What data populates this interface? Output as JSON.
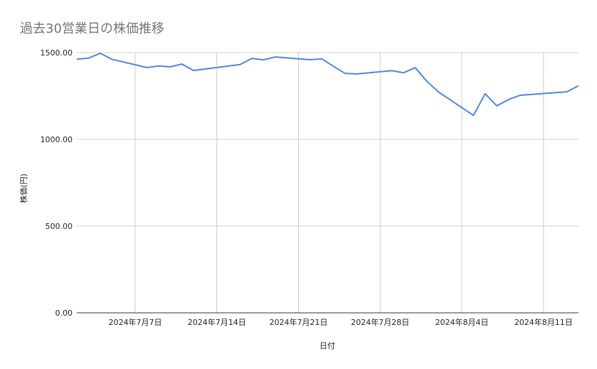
{
  "chart_data": {
    "type": "line",
    "title": "過去30営業日の株価推移",
    "xlabel": "日付",
    "ylabel": "株価(円)",
    "ylim": [
      0,
      1500
    ],
    "xlim": [
      "2024-07-02",
      "2024-08-14"
    ],
    "yticks": [
      0,
      500,
      1000,
      1500
    ],
    "ytick_labels": [
      "0.00",
      "500.00",
      "1000.00",
      "1500.00"
    ],
    "xticks": [
      {
        "date": "2024-07-07",
        "label": "2024年7月7日"
      },
      {
        "date": "2024-07-14",
        "label": "2024年7月14日"
      },
      {
        "date": "2024-07-21",
        "label": "2024年7月21日"
      },
      {
        "date": "2024-07-28",
        "label": "2024年7月28日"
      },
      {
        "date": "2024-08-04",
        "label": "2024年8月4日"
      },
      {
        "date": "2024-08-11",
        "label": "2024年8月11日"
      }
    ],
    "grid": true,
    "legend": "none",
    "color": "#4a86e8",
    "x": [
      "2024-07-02",
      "2024-07-03",
      "2024-07-04",
      "2024-07-05",
      "2024-07-08",
      "2024-07-09",
      "2024-07-10",
      "2024-07-11",
      "2024-07-12",
      "2024-07-16",
      "2024-07-17",
      "2024-07-18",
      "2024-07-19",
      "2024-07-22",
      "2024-07-23",
      "2024-07-24",
      "2024-07-25",
      "2024-07-26",
      "2024-07-29",
      "2024-07-30",
      "2024-07-31",
      "2024-08-01",
      "2024-08-02",
      "2024-08-05",
      "2024-08-06",
      "2024-08-07",
      "2024-08-08",
      "2024-08-09",
      "2024-08-13",
      "2024-08-14"
    ],
    "values": [
      1462,
      1468,
      1496,
      1462,
      1414,
      1423,
      1418,
      1434,
      1397,
      1431,
      1467,
      1458,
      1475,
      1459,
      1464,
      1421,
      1380,
      1377,
      1396,
      1384,
      1413,
      1335,
      1273,
      1138,
      1263,
      1193,
      1229,
      1254,
      1274,
      1309
    ]
  }
}
